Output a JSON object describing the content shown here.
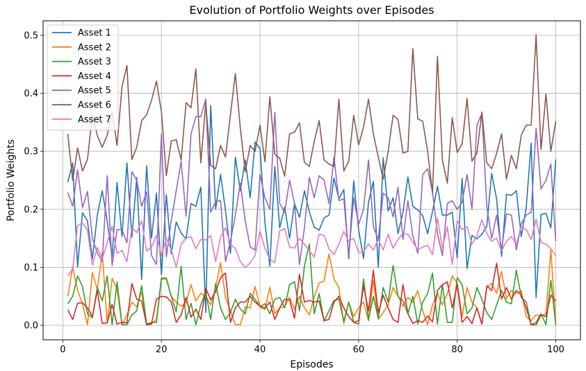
{
  "chart_data": {
    "type": "line",
    "title": "Evolution of Portfolio Weights over Episodes",
    "xlabel": "Episodes",
    "ylabel": "Portfolio Weights",
    "xlim": [
      -4,
      105
    ],
    "ylim": [
      -0.025,
      0.525
    ],
    "xticks": [
      0,
      20,
      40,
      60,
      80,
      100
    ],
    "yticks": [
      0.0,
      0.1,
      0.2,
      0.3,
      0.4,
      0.5
    ],
    "xtick_labels": [
      "0",
      "20",
      "40",
      "60",
      "80",
      "100"
    ],
    "ytick_labels": [
      "0.0",
      "0.1",
      "0.2",
      "0.3",
      "0.4",
      "0.5"
    ],
    "grid": true,
    "legend": "top-left",
    "x": [
      1,
      2,
      3,
      4,
      5,
      6,
      7,
      8,
      9,
      10,
      11,
      12,
      13,
      14,
      15,
      16,
      17,
      18,
      19,
      20,
      21,
      22,
      23,
      24,
      25,
      26,
      27,
      28,
      29,
      30,
      31,
      32,
      33,
      34,
      35,
      36,
      37,
      38,
      39,
      40,
      41,
      42,
      43,
      44,
      45,
      46,
      47,
      48,
      49,
      50,
      51,
      52,
      53,
      54,
      55,
      56,
      57,
      58,
      59,
      60,
      61,
      62,
      63,
      64,
      65,
      66,
      67,
      68,
      69,
      70,
      71,
      72,
      73,
      74,
      75,
      76,
      77,
      78,
      79,
      80,
      81,
      82,
      83,
      84,
      85,
      86,
      87,
      88,
      89,
      90,
      91,
      92,
      93,
      94,
      95,
      96,
      97,
      98,
      99,
      100
    ],
    "series": [
      {
        "name": "Asset 1",
        "color": "#1f77b4",
        "values": [
          0.247,
          0.28,
          0.101,
          0.194,
          0.18,
          0.114,
          0.19,
          0.232,
          0.18,
          0.118,
          0.246,
          0.153,
          0.28,
          0.152,
          0.255,
          0.079,
          0.275,
          0.15,
          0.228,
          0.087,
          0.225,
          0.123,
          0.178,
          0.159,
          0.149,
          0.21,
          0.205,
          0.238,
          0.022,
          0.379,
          0.2,
          0.26,
          0.198,
          0.124,
          0.29,
          0.232,
          0.285,
          0.22,
          0.316,
          0.305,
          0.178,
          0.102,
          0.274,
          0.168,
          0.204,
          0.15,
          0.21,
          0.186,
          0.232,
          0.196,
          0.169,
          0.164,
          0.185,
          0.19,
          0.254,
          0.218,
          0.234,
          0.115,
          0.249,
          0.165,
          0.115,
          0.212,
          0.248,
          0.1,
          0.289,
          0.197,
          0.22,
          0.158,
          0.195,
          0.256,
          0.205,
          0.199,
          0.189,
          0.158,
          0.196,
          0.24,
          0.19,
          0.19,
          0.195,
          0.116,
          0.253,
          0.098,
          0.155,
          0.149,
          0.157,
          0.171,
          0.262,
          0.218,
          0.119,
          0.226,
          0.224,
          0.232,
          0.153,
          0.203,
          0.314,
          0.048,
          0.191,
          0.193,
          0.168,
          0.286
        ]
      },
      {
        "name": "Asset 2",
        "color": "#ff7f0e",
        "values": [
          0.05,
          0.1,
          0.06,
          0.037,
          0.001,
          0.091,
          0.062,
          0.125,
          0.004,
          0.081,
          0.062,
          0.001,
          0.018,
          0.04,
          0.032,
          0.058,
          0.001,
          0.003,
          0.01,
          0.082,
          0.082,
          0.05,
          0.04,
          0.033,
          0.039,
          0.07,
          0.042,
          0.055,
          0.05,
          0.035,
          0.065,
          0.108,
          0.048,
          0.025,
          0.001,
          0.001,
          0.032,
          0.03,
          0.067,
          0.032,
          0.027,
          0.066,
          0.02,
          0.03,
          0.032,
          0.048,
          0.028,
          0.05,
          0.03,
          0.018,
          0.049,
          0.073,
          0.076,
          0.123,
          0.08,
          0.065,
          0.003,
          0.04,
          0.015,
          0.03,
          0.04,
          0.008,
          0.078,
          0.01,
          0.022,
          0.035,
          0.065,
          0.05,
          0.033,
          0.048,
          0.04,
          0.06,
          0.025,
          0.001,
          0.035,
          0.055,
          0.035,
          0.055,
          0.085,
          0.073,
          0.015,
          0.065,
          0.04,
          0.03,
          0.002,
          0.065,
          0.072,
          0.055,
          0.093,
          0.046,
          0.06,
          0.055,
          0.06,
          0.015,
          0.008,
          0.018,
          0.016,
          0.02,
          0.13,
          0.005
        ]
      },
      {
        "name": "Asset 3",
        "color": "#2ca02c",
        "values": [
          0.037,
          0.05,
          0.085,
          0.067,
          0.02,
          0.013,
          0.065,
          0.042,
          0.085,
          0.001,
          0.075,
          0.001,
          0.001,
          0.018,
          0.025,
          0.068,
          0.002,
          0.005,
          0.005,
          0.08,
          0.08,
          0.05,
          0.023,
          0.102,
          0.01,
          0.038,
          0.001,
          0.035,
          0.058,
          0.01,
          0.072,
          0.03,
          0.01,
          0.022,
          0.045,
          0.028,
          0.02,
          0.055,
          0.045,
          0.032,
          0.037,
          0.02,
          0.045,
          0.048,
          0.03,
          0.07,
          0.075,
          0.025,
          0.102,
          0.14,
          0.02,
          0.055,
          0.007,
          0.025,
          0.043,
          0.045,
          0.007,
          0.04,
          0.005,
          0.002,
          0.08,
          0.01,
          0.05,
          0.012,
          0.065,
          0.04,
          0.103,
          0.05,
          0.042,
          0.02,
          0.05,
          0.002,
          0.04,
          0.055,
          0.09,
          0.002,
          0.07,
          0.005,
          0.005,
          0.082,
          0.07,
          0.02,
          0.03,
          0.065,
          0.045,
          0.022,
          0.01,
          0.035,
          0.06,
          0.04,
          0.037,
          0.095,
          0.048,
          0.04,
          0.001,
          0.005,
          0.02,
          0.001,
          0.078,
          0.001
        ]
      },
      {
        "name": "Asset 4",
        "color": "#d62728",
        "values": [
          0.027,
          0.01,
          0.038,
          0.039,
          0.03,
          0.015,
          0.06,
          0.003,
          0.004,
          0.036,
          0.002,
          0.005,
          0.004,
          0.072,
          0.045,
          0.042,
          0.001,
          0.002,
          0.045,
          0.05,
          0.049,
          0.04,
          0.005,
          0.018,
          0.048,
          0.014,
          0.028,
          0.01,
          0.064,
          0.044,
          0.058,
          0.082,
          0.09,
          0.005,
          0.03,
          0.04,
          0.04,
          0.05,
          0.04,
          0.033,
          0.03,
          0.04,
          0.01,
          0.03,
          0.045,
          0.044,
          0.012,
          0.088,
          0.04,
          0.043,
          0.04,
          0.042,
          0.008,
          0.01,
          0.04,
          0.05,
          0.03,
          0.015,
          0.005,
          0.008,
          0.068,
          0.025,
          0.095,
          0.022,
          0.052,
          0.03,
          0.01,
          0.005,
          0.07,
          0.02,
          0.003,
          0.008,
          0.005,
          0.016,
          0.006,
          0.06,
          0.07,
          0.075,
          0.03,
          0.07,
          0.005,
          0.015,
          0.003,
          0.03,
          0.002,
          0.068,
          0.06,
          0.107,
          0.045,
          0.065,
          0.045,
          0.06,
          0.052,
          0.03,
          0.001,
          0.001,
          0.018,
          0.015,
          0.052,
          0.042
        ]
      },
      {
        "name": "Asset 5",
        "color": "#9467bd",
        "values": [
          0.229,
          0.205,
          0.268,
          0.203,
          0.231,
          0.15,
          0.125,
          0.11,
          0.258,
          0.103,
          0.165,
          0.165,
          0.142,
          0.265,
          0.25,
          0.205,
          0.23,
          0.12,
          0.105,
          0.33,
          0.118,
          0.181,
          0.232,
          0.283,
          0.188,
          0.33,
          0.36,
          0.36,
          0.39,
          0.195,
          0.213,
          0.215,
          0.11,
          0.145,
          0.19,
          0.245,
          0.18,
          0.135,
          0.13,
          0.26,
          0.22,
          0.2,
          0.367,
          0.21,
          0.195,
          0.25,
          0.21,
          0.105,
          0.168,
          0.255,
          0.22,
          0.258,
          0.25,
          0.21,
          0.29,
          0.215,
          0.218,
          0.12,
          0.22,
          0.174,
          0.2,
          0.285,
          0.17,
          0.148,
          0.228,
          0.22,
          0.187,
          0.238,
          0.148,
          0.215,
          0.154,
          0.124,
          0.26,
          0.27,
          0.23,
          0.158,
          0.12,
          0.21,
          0.215,
          0.2,
          0.212,
          0.26,
          0.2,
          0.345,
          0.365,
          0.205,
          0.15,
          0.19,
          0.13,
          0.192,
          0.19,
          0.13,
          0.175,
          0.19,
          0.195,
          0.34,
          0.235,
          0.25,
          0.278,
          0.145
        ]
      },
      {
        "name": "Asset 6",
        "color": "#8c564b",
        "values": [
          0.33,
          0.25,
          0.306,
          0.266,
          0.286,
          0.363,
          0.327,
          0.307,
          0.328,
          0.368,
          0.31,
          0.411,
          0.448,
          0.286,
          0.307,
          0.353,
          0.363,
          0.388,
          0.421,
          0.368,
          0.258,
          0.318,
          0.32,
          0.285,
          0.384,
          0.375,
          0.442,
          0.28,
          0.384,
          0.276,
          0.27,
          0.31,
          0.29,
          0.363,
          0.434,
          0.34,
          0.265,
          0.31,
          0.3,
          0.345,
          0.282,
          0.394,
          0.295,
          0.288,
          0.257,
          0.33,
          0.333,
          0.349,
          0.281,
          0.274,
          0.317,
          0.353,
          0.285,
          0.278,
          0.274,
          0.39,
          0.266,
          0.283,
          0.362,
          0.311,
          0.342,
          0.39,
          0.33,
          0.29,
          0.252,
          0.3,
          0.362,
          0.355,
          0.297,
          0.3,
          0.477,
          0.356,
          0.352,
          0.3,
          0.227,
          0.464,
          0.285,
          0.245,
          0.358,
          0.298,
          0.313,
          0.391,
          0.283,
          0.297,
          0.368,
          0.28,
          0.27,
          0.296,
          0.33,
          0.252,
          0.293,
          0.27,
          0.328,
          0.345,
          0.345,
          0.501,
          0.303,
          0.399,
          0.3,
          0.352
        ]
      },
      {
        "name": "Asset 7",
        "color": "#e377c2",
        "values": [
          0.085,
          0.097,
          0.172,
          0.176,
          0.165,
          0.104,
          0.134,
          0.114,
          0.143,
          0.17,
          0.124,
          0.129,
          0.11,
          0.168,
          0.16,
          0.18,
          0.128,
          0.135,
          0.155,
          0.12,
          0.15,
          0.13,
          0.1,
          0.14,
          0.15,
          0.153,
          0.132,
          0.148,
          0.147,
          0.155,
          0.11,
          0.152,
          0.168,
          0.14,
          0.132,
          0.11,
          0.099,
          0.108,
          0.12,
          0.162,
          0.133,
          0.114,
          0.108,
          0.163,
          0.167,
          0.135,
          0.133,
          0.15,
          0.14,
          0.128,
          0.118,
          0.157,
          0.155,
          0.132,
          0.122,
          0.14,
          0.162,
          0.145,
          0.15,
          0.125,
          0.127,
          0.14,
          0.13,
          0.148,
          0.13,
          0.157,
          0.133,
          0.148,
          0.158,
          0.157,
          0.144,
          0.13,
          0.135,
          0.138,
          0.122,
          0.185,
          0.133,
          0.17,
          0.105,
          0.18,
          0.165,
          0.17,
          0.14,
          0.155,
          0.182,
          0.158,
          0.145,
          0.15,
          0.128,
          0.145,
          0.153,
          0.14,
          0.17,
          0.165,
          0.148,
          0.183,
          0.143,
          0.14,
          0.132,
          0.12
        ]
      }
    ]
  }
}
